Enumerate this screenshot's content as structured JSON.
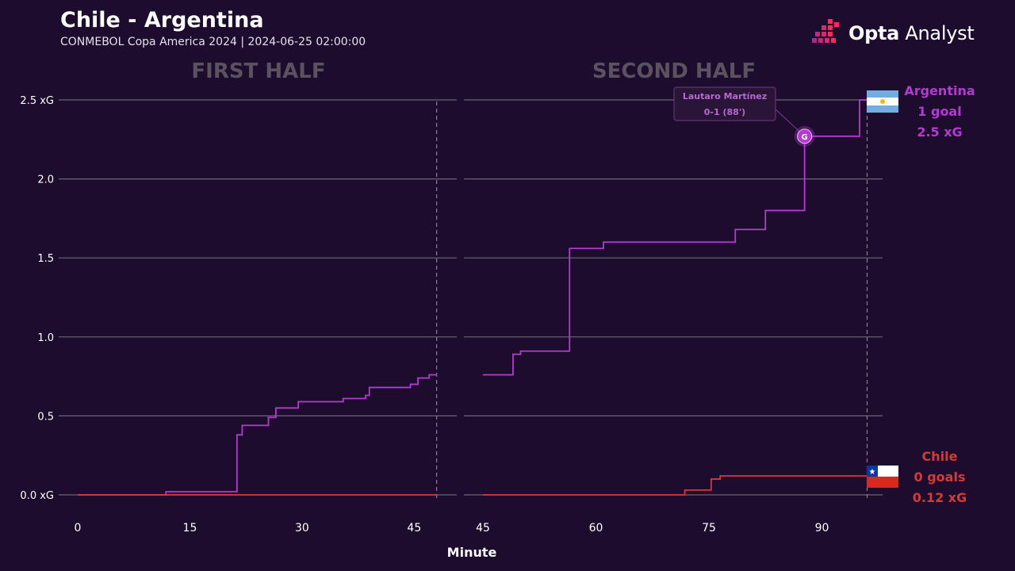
{
  "header": {
    "title": "Chile - Argentina",
    "subtitle": "CONMEBOL Copa America 2024 | 2024-06-25 02:00:00"
  },
  "brand": {
    "name_bold": "Opta",
    "name_light": "Analyst",
    "logo_icon": "opta-pixel-logo-icon"
  },
  "colors": {
    "background": "#1d0c2d",
    "argentina": "#b33bd0",
    "chile": "#d43a3a",
    "grid": "#6e6478",
    "half_label": "#5a5260"
  },
  "chart_data": {
    "type": "line",
    "step": true,
    "xlabel": "Minute",
    "ylabel": "",
    "ylim": [
      0,
      2.5
    ],
    "y_ticks": [
      0,
      0.5,
      1.0,
      1.5,
      2.0,
      2.5
    ],
    "y_tick_labels": [
      "0.0 xG",
      "0.5",
      "1.0",
      "1.5",
      "2.0",
      "2.5 xG"
    ],
    "grid": true,
    "panels": [
      {
        "label": "FIRST HALF",
        "xlim": [
          0,
          48
        ],
        "x_ticks": [
          0,
          15,
          30,
          45
        ],
        "x_tick_labels": [
          "0",
          "15",
          "30",
          "45"
        ],
        "end_marker": 48
      },
      {
        "label": "SECOND HALF",
        "xlim": [
          45,
          97
        ],
        "x_ticks": [
          45,
          60,
          75,
          90
        ],
        "x_tick_labels": [
          "45",
          "60",
          "75",
          "90"
        ],
        "end_marker": 96
      }
    ],
    "series": [
      {
        "name": "Argentina",
        "goals_label": "1 goal",
        "xg_label": "2.5 xG",
        "flag_icon": "argentina-flag-icon",
        "first_half": [
          [
            0,
            0
          ],
          [
            11.8,
            0.02
          ],
          [
            21.3,
            0.38
          ],
          [
            22,
            0.44
          ],
          [
            25.5,
            0.49
          ],
          [
            26.5,
            0.55
          ],
          [
            29.5,
            0.59
          ],
          [
            35.5,
            0.61
          ],
          [
            38.5,
            0.63
          ],
          [
            39,
            0.68
          ],
          [
            44.5,
            0.7
          ],
          [
            45.5,
            0.74
          ],
          [
            47,
            0.76
          ],
          [
            48,
            0.76
          ]
        ],
        "second_half": [
          [
            45,
            0.76
          ],
          [
            49,
            0.89
          ],
          [
            50,
            0.91
          ],
          [
            56.5,
            1.56
          ],
          [
            61,
            1.6
          ],
          [
            78.5,
            1.68
          ],
          [
            82.5,
            1.8
          ],
          [
            87.7,
            2.27
          ],
          [
            95,
            2.5
          ],
          [
            96,
            2.5
          ]
        ]
      },
      {
        "name": "Chile",
        "goals_label": "0 goals",
        "xg_label": "0.12 xG",
        "flag_icon": "chile-flag-icon",
        "first_half": [
          [
            0,
            0
          ],
          [
            48,
            0
          ]
        ],
        "second_half": [
          [
            45,
            0
          ],
          [
            71.8,
            0.03
          ],
          [
            75.3,
            0.1
          ],
          [
            76.5,
            0.12
          ],
          [
            96,
            0.12
          ]
        ]
      }
    ],
    "annotations": [
      {
        "type": "goal",
        "marker": "G",
        "panel": 1,
        "x": 87.7,
        "y": 2.27,
        "player": "Lautaro Martínez",
        "detail": "0-1 (88')"
      }
    ]
  }
}
